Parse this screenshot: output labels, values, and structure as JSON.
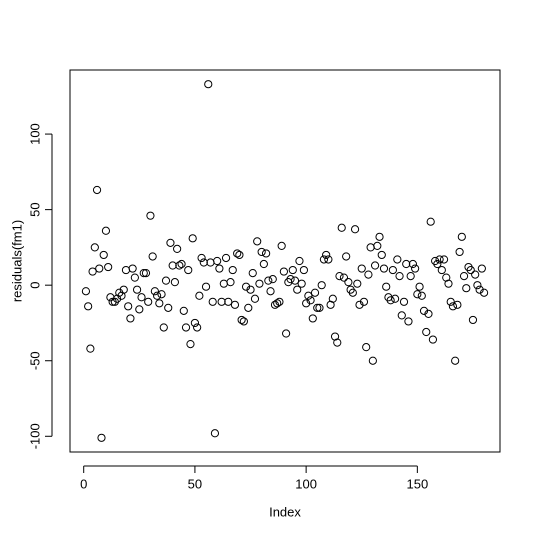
{
  "chart_data": {
    "type": "scatter",
    "xlabel": "Index",
    "ylabel": "residuals(fm1)",
    "x": [
      1,
      2,
      3,
      4,
      5,
      6,
      7,
      8,
      9,
      10,
      11,
      12,
      13,
      14,
      15,
      16,
      17,
      18,
      19,
      20,
      21,
      22,
      23,
      24,
      25,
      26,
      27,
      28,
      29,
      30,
      31,
      32,
      33,
      34,
      35,
      36,
      37,
      38,
      39,
      40,
      41,
      42,
      43,
      44,
      45,
      46,
      47,
      48,
      49,
      50,
      51,
      52,
      53,
      54,
      55,
      56,
      57,
      58,
      59,
      60,
      61,
      62,
      63,
      64,
      65,
      66,
      67,
      68,
      69,
      70,
      71,
      72,
      73,
      74,
      75,
      76,
      77,
      78,
      79,
      80,
      81,
      82,
      83,
      84,
      85,
      86,
      87,
      88,
      89,
      90,
      91,
      92,
      93,
      94,
      95,
      96,
      97,
      98,
      99,
      100,
      101,
      102,
      103,
      104,
      105,
      106,
      107,
      108,
      109,
      110,
      111,
      112,
      113,
      114,
      115,
      116,
      117,
      118,
      119,
      120,
      121,
      122,
      123,
      124,
      125,
      126,
      127,
      128,
      129,
      130,
      131,
      132,
      133,
      134,
      135,
      136,
      137,
      138,
      139,
      140,
      141,
      142,
      143,
      144,
      145,
      146,
      147,
      148,
      149,
      150,
      151,
      152,
      153,
      154,
      155,
      156,
      157,
      158,
      159,
      160,
      161,
      162,
      163,
      164,
      165,
      166,
      167,
      168,
      169,
      170,
      171,
      172,
      173,
      174,
      175,
      176,
      177,
      178,
      179,
      180
    ],
    "values": [
      -4,
      -14,
      -42,
      9,
      25,
      63,
      11,
      -101,
      20,
      36,
      12,
      -8,
      -11,
      -11,
      -9,
      -5,
      -7,
      -3,
      10,
      -14,
      -22,
      11,
      5,
      -3,
      -16,
      -8,
      8,
      8,
      -11,
      46,
      19,
      -4,
      -7,
      -12,
      -6,
      -28,
      3,
      -15,
      28,
      13,
      2,
      24,
      13,
      14,
      -17,
      -28,
      10,
      -39,
      31,
      -25,
      -28,
      -7,
      18,
      15,
      -1,
      133,
      15,
      -11,
      -98,
      16,
      11,
      -11,
      1,
      18,
      -11,
      2,
      10,
      -13,
      21,
      20,
      -23,
      -24,
      -1,
      -15,
      -3,
      8,
      -9,
      29,
      1,
      22,
      14,
      21,
      3,
      -4,
      4,
      -13,
      -12,
      -11,
      26,
      9,
      -32,
      2,
      4,
      10,
      3,
      -3,
      16,
      1,
      10,
      -12,
      -7,
      -10,
      -22,
      -5,
      -15,
      -15,
      0,
      17,
      20,
      17,
      -13,
      -9,
      -34,
      -38,
      6,
      38,
      5,
      19,
      2,
      -3,
      -5,
      37,
      1,
      -13,
      11,
      -11,
      -41,
      7,
      25,
      -50,
      13,
      26,
      32,
      20,
      11,
      -1,
      -8,
      -10,
      10,
      -9,
      17,
      6,
      -20,
      -11,
      14,
      -24,
      6,
      14,
      11,
      -6,
      -1,
      -7,
      -17,
      -31,
      -19,
      42,
      -36,
      16,
      14,
      17,
      10,
      17,
      5,
      1,
      -11,
      -14,
      -50,
      -13,
      22,
      32,
      6,
      -2,
      12,
      10,
      -23,
      7,
      0,
      -3,
      11,
      -5
    ],
    "color": "#000000",
    "xlim": [
      -6.16,
      187.16
    ],
    "ylim": [
      -110.4,
      142.4
    ],
    "xticks": [
      0,
      50,
      100,
      150
    ],
    "yticks": [
      -100,
      -50,
      0,
      50,
      100
    ]
  }
}
